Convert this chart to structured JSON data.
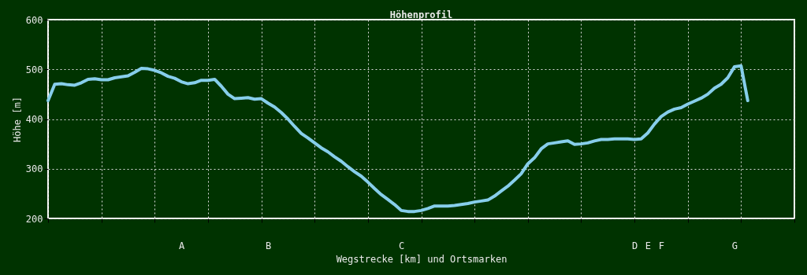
{
  "chart_data": {
    "type": "line",
    "title": "Höhenprofil",
    "xlabel": "Wegstrecke [km] und Ortsmarken",
    "ylabel": "Höhe [m]",
    "categories": [
      null,
      null,
      null,
      null,
      null,
      null,
      null,
      null,
      null,
      null,
      null,
      null,
      null,
      null,
      null,
      null,
      null,
      null,
      null,
      null,
      "A",
      null,
      null,
      null,
      null,
      null,
      null,
      null,
      null,
      null,
      null,
      null,
      null,
      "B",
      null,
      null,
      null,
      null,
      null,
      null,
      null,
      null,
      null,
      null,
      null,
      null,
      null,
      null,
      null,
      null,
      null,
      null,
      null,
      "C",
      null,
      null,
      null,
      null,
      null,
      null,
      null,
      null,
      null,
      null,
      null,
      null,
      null,
      null,
      null,
      null,
      null,
      null,
      null,
      null,
      null,
      null,
      null,
      null,
      null,
      null,
      null,
      null,
      null,
      null,
      null,
      null,
      null,
      null,
      "D",
      null,
      "E",
      null,
      "F",
      null,
      null,
      null,
      null,
      null,
      null,
      null,
      null,
      null,
      null,
      "G",
      null,
      null,
      null,
      null,
      null,
      null,
      null,
      null,
      null
    ],
    "values": [
      437,
      470,
      471,
      469,
      468,
      473,
      480,
      481,
      479,
      479,
      483,
      485,
      487,
      494,
      502,
      501,
      498,
      493,
      486,
      482,
      475,
      471,
      473,
      478,
      478,
      480,
      466,
      450,
      441,
      442,
      443,
      440,
      441,
      432,
      424,
      413,
      400,
      385,
      371,
      362,
      352,
      342,
      334,
      324,
      315,
      304,
      294,
      285,
      273,
      260,
      248,
      238,
      228,
      216,
      214,
      214,
      216,
      220,
      225,
      225,
      225,
      226,
      228,
      230,
      233,
      235,
      237,
      245,
      255,
      265,
      277,
      290,
      310,
      322,
      340,
      350,
      352,
      354,
      356,
      349,
      350,
      352,
      356,
      359,
      359,
      360,
      360,
      360,
      359,
      360,
      372,
      390,
      405,
      414,
      420,
      423,
      430,
      436,
      442,
      450,
      462,
      470,
      483,
      505,
      507,
      437,
      null,
      null,
      null,
      null,
      null,
      null,
      null
    ],
    "color": "#87ceeb",
    "ylim": [
      200,
      600
    ],
    "yticks": [
      200,
      300,
      400,
      500,
      600
    ],
    "grid": true
  }
}
